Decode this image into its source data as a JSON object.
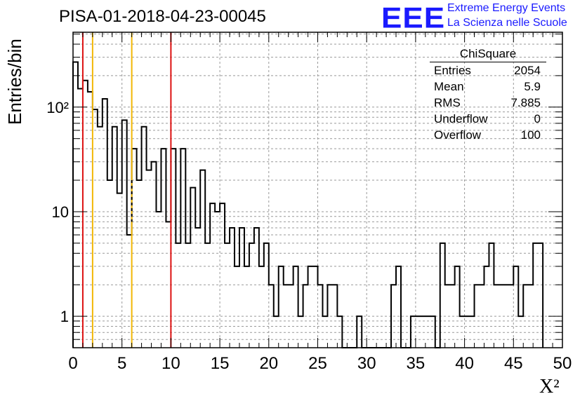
{
  "header": {
    "title": "PISA-01-2018-04-23-00045",
    "logo_text": "EEE",
    "logo_line1": "Extreme Energy Events",
    "logo_line2": "La Scienza nelle Scuole"
  },
  "stats_box": {
    "title": "ChiSquare",
    "rows": [
      {
        "label": "Entries",
        "value": "2054"
      },
      {
        "label": "Mean",
        "value": "5.9"
      },
      {
        "label": "RMS",
        "value": "7.885"
      },
      {
        "label": "Underflow",
        "value": "0"
      },
      {
        "label": "Overflow",
        "value": "100"
      }
    ]
  },
  "colors": {
    "histogram": "#000000",
    "red_lines": "#dd1111",
    "yellow_lines": "#f2b705",
    "grid": "#999999",
    "logo": "#1a1aff"
  },
  "chart_data": {
    "type": "bar",
    "histogram_style": "step",
    "xlabel": "X²",
    "ylabel": "Entries/bin",
    "xlim": [
      0,
      50
    ],
    "ylim": [
      0.5,
      520
    ],
    "y_scale": "log",
    "x_ticks": [
      "0",
      "5",
      "10",
      "15",
      "20",
      "25",
      "30",
      "35",
      "40",
      "45",
      "50"
    ],
    "y_tick_labels": [
      {
        "value": 1,
        "label": "1"
      },
      {
        "value": 10,
        "label": "10"
      },
      {
        "value": 100,
        "label": "10²"
      }
    ],
    "grid": true,
    "bin_width": 0.5,
    "values": [
      270,
      150,
      180,
      140,
      95,
      65,
      120,
      20,
      65,
      15,
      75,
      6,
      40,
      20,
      65,
      25,
      30,
      10,
      40,
      8,
      40,
      5,
      40,
      5,
      17,
      7,
      25,
      5,
      12,
      10,
      12,
      5,
      7,
      3,
      7,
      3,
      5,
      7,
      3,
      5,
      2,
      1,
      3,
      2,
      2,
      3,
      1,
      2,
      3,
      3,
      2,
      1,
      2,
      2,
      1,
      0.3,
      0.3,
      0.3,
      1,
      0.3,
      0.3,
      0.3,
      0.3,
      0.3,
      0.3,
      2,
      3,
      0.3,
      0.3,
      1,
      1,
      1,
      1,
      1,
      0.3,
      5,
      2,
      2,
      3,
      1,
      1,
      1,
      2,
      2,
      3,
      5,
      2,
      2,
      2,
      2,
      3,
      1,
      2,
      2,
      5,
      5
    ],
    "vertical_lines": [
      {
        "x": 1,
        "color": "red",
        "style": "solid"
      },
      {
        "x": 2,
        "color": "yellow",
        "style": "solid"
      },
      {
        "x": 6,
        "color": "yellow",
        "style": "solid"
      },
      {
        "x": 6,
        "color": "black",
        "style": "dashed"
      },
      {
        "x": 10,
        "color": "red",
        "style": "solid"
      }
    ]
  }
}
